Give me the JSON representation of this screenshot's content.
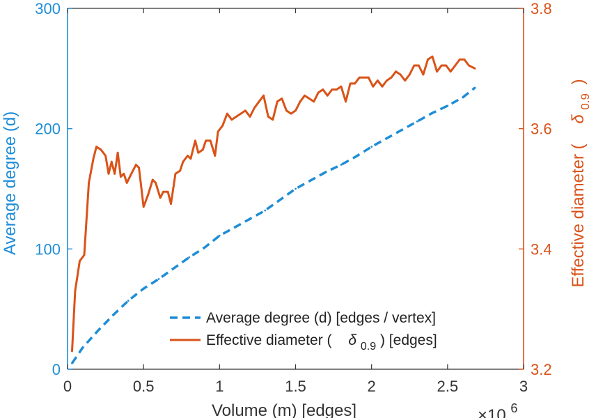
{
  "chart_data": {
    "type": "line",
    "title": "",
    "xlabel": "Volume (m) [edges]",
    "x_exponent_label": "×10",
    "x_exponent_power": "6",
    "xlim": [
      0,
      3
    ],
    "xticks": [
      0,
      0.5,
      1,
      1.5,
      2,
      2.5,
      3
    ],
    "xtick_labels": [
      "0",
      "0.5",
      "1",
      "1.5",
      "2",
      "2.5",
      "3"
    ],
    "y_left": {
      "label": "Average degree (d)",
      "ylim": [
        0,
        300
      ],
      "ticks": [
        0,
        100,
        200,
        300
      ],
      "tick_labels": [
        "0",
        "100",
        "200",
        "300"
      ],
      "color": "#1f8dd6"
    },
    "y_right": {
      "label_main": "Effective diameter (",
      "label_symbol": "δ",
      "label_sub": "0.9",
      "label_close": ")",
      "ylim": [
        3.2,
        3.8
      ],
      "ticks": [
        3.2,
        3.4,
        3.6,
        3.8
      ],
      "tick_labels": [
        "3.2",
        "3.4",
        "3.6",
        "3.8"
      ],
      "color": "#d95319"
    },
    "legend": {
      "placement": "bottom-center",
      "entries": [
        {
          "label": "Average degree (d) [edges / vertex]"
        },
        {
          "label_main": "Effective diameter (",
          "label_symbol": "δ",
          "label_sub": "0.9",
          "label_close": ") [edges]"
        }
      ]
    },
    "series": [
      {
        "axis": "left",
        "style": "dashed",
        "color": "#1f8dd6",
        "x": [
          0.03,
          0.1,
          0.2,
          0.3,
          0.4,
          0.5,
          0.6,
          0.7,
          0.8,
          0.9,
          1.0,
          1.1,
          1.2,
          1.3,
          1.4,
          1.5,
          1.6,
          1.7,
          1.8,
          1.9,
          2.0,
          2.1,
          2.2,
          2.3,
          2.4,
          2.5,
          2.6,
          2.68
        ],
        "y": [
          5,
          18,
          32,
          45,
          57,
          67,
          75,
          84,
          93,
          101,
          111,
          118,
          125,
          132,
          141,
          150,
          157,
          164,
          170,
          177,
          185,
          192,
          199,
          206,
          213,
          219,
          226,
          234
        ]
      },
      {
        "axis": "right",
        "style": "solid",
        "color": "#d95319",
        "x": [
          0.03,
          0.05,
          0.08,
          0.11,
          0.14,
          0.17,
          0.19,
          0.22,
          0.25,
          0.27,
          0.29,
          0.31,
          0.33,
          0.35,
          0.37,
          0.39,
          0.41,
          0.43,
          0.45,
          0.47,
          0.5,
          0.53,
          0.56,
          0.58,
          0.61,
          0.63,
          0.66,
          0.68,
          0.71,
          0.74,
          0.76,
          0.79,
          0.81,
          0.84,
          0.86,
          0.89,
          0.91,
          0.94,
          0.97,
          0.99,
          1.02,
          1.05,
          1.08,
          1.11,
          1.14,
          1.17,
          1.2,
          1.23,
          1.26,
          1.29,
          1.32,
          1.35,
          1.38,
          1.41,
          1.44,
          1.47,
          1.5,
          1.53,
          1.56,
          1.59,
          1.62,
          1.65,
          1.68,
          1.71,
          1.74,
          1.77,
          1.8,
          1.83,
          1.86,
          1.89,
          1.92,
          1.95,
          1.98,
          2.01,
          2.04,
          2.07,
          2.1,
          2.13,
          2.16,
          2.19,
          2.22,
          2.25,
          2.28,
          2.31,
          2.34,
          2.37,
          2.4,
          2.43,
          2.46,
          2.49,
          2.52,
          2.55,
          2.58,
          2.61,
          2.64,
          2.68
        ],
        "y": [
          3.23,
          3.33,
          3.38,
          3.39,
          3.51,
          3.55,
          3.57,
          3.565,
          3.555,
          3.525,
          3.545,
          3.525,
          3.56,
          3.52,
          3.525,
          3.51,
          3.52,
          3.53,
          3.54,
          3.535,
          3.47,
          3.49,
          3.515,
          3.51,
          3.485,
          3.495,
          3.495,
          3.475,
          3.525,
          3.53,
          3.545,
          3.555,
          3.55,
          3.58,
          3.56,
          3.565,
          3.58,
          3.58,
          3.555,
          3.595,
          3.605,
          3.625,
          3.615,
          3.62,
          3.625,
          3.63,
          3.62,
          3.635,
          3.645,
          3.655,
          3.62,
          3.615,
          3.645,
          3.65,
          3.63,
          3.625,
          3.63,
          3.645,
          3.655,
          3.65,
          3.645,
          3.66,
          3.665,
          3.655,
          3.665,
          3.665,
          3.67,
          3.645,
          3.675,
          3.675,
          3.685,
          3.685,
          3.685,
          3.67,
          3.68,
          3.67,
          3.68,
          3.685,
          3.695,
          3.69,
          3.68,
          3.69,
          3.705,
          3.705,
          3.69,
          3.715,
          3.72,
          3.695,
          3.705,
          3.705,
          3.695,
          3.705,
          3.715,
          3.715,
          3.705,
          3.7
        ]
      }
    ]
  }
}
